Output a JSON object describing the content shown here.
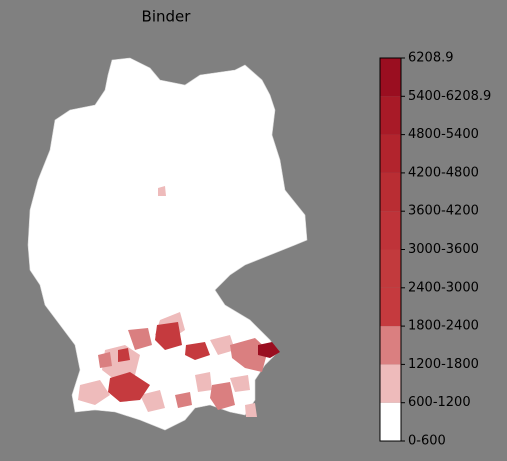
{
  "title": "Binder",
  "legend": {
    "labels": [
      "0-600",
      "600-1200",
      "1200-1800",
      "1800-2400",
      "2400-3000",
      "3000-3600",
      "3600-4200",
      "4200-4800",
      "4800-5400",
      "5400-6208.9",
      "6208.9"
    ],
    "colors": [
      "#ffffff",
      "#eebbbb",
      "#da7f80",
      "#c53a3e",
      "#c23a3d",
      "#bf3339",
      "#b92d33",
      "#b2242d",
      "#a81a27",
      "#9a0e20"
    ]
  }
}
